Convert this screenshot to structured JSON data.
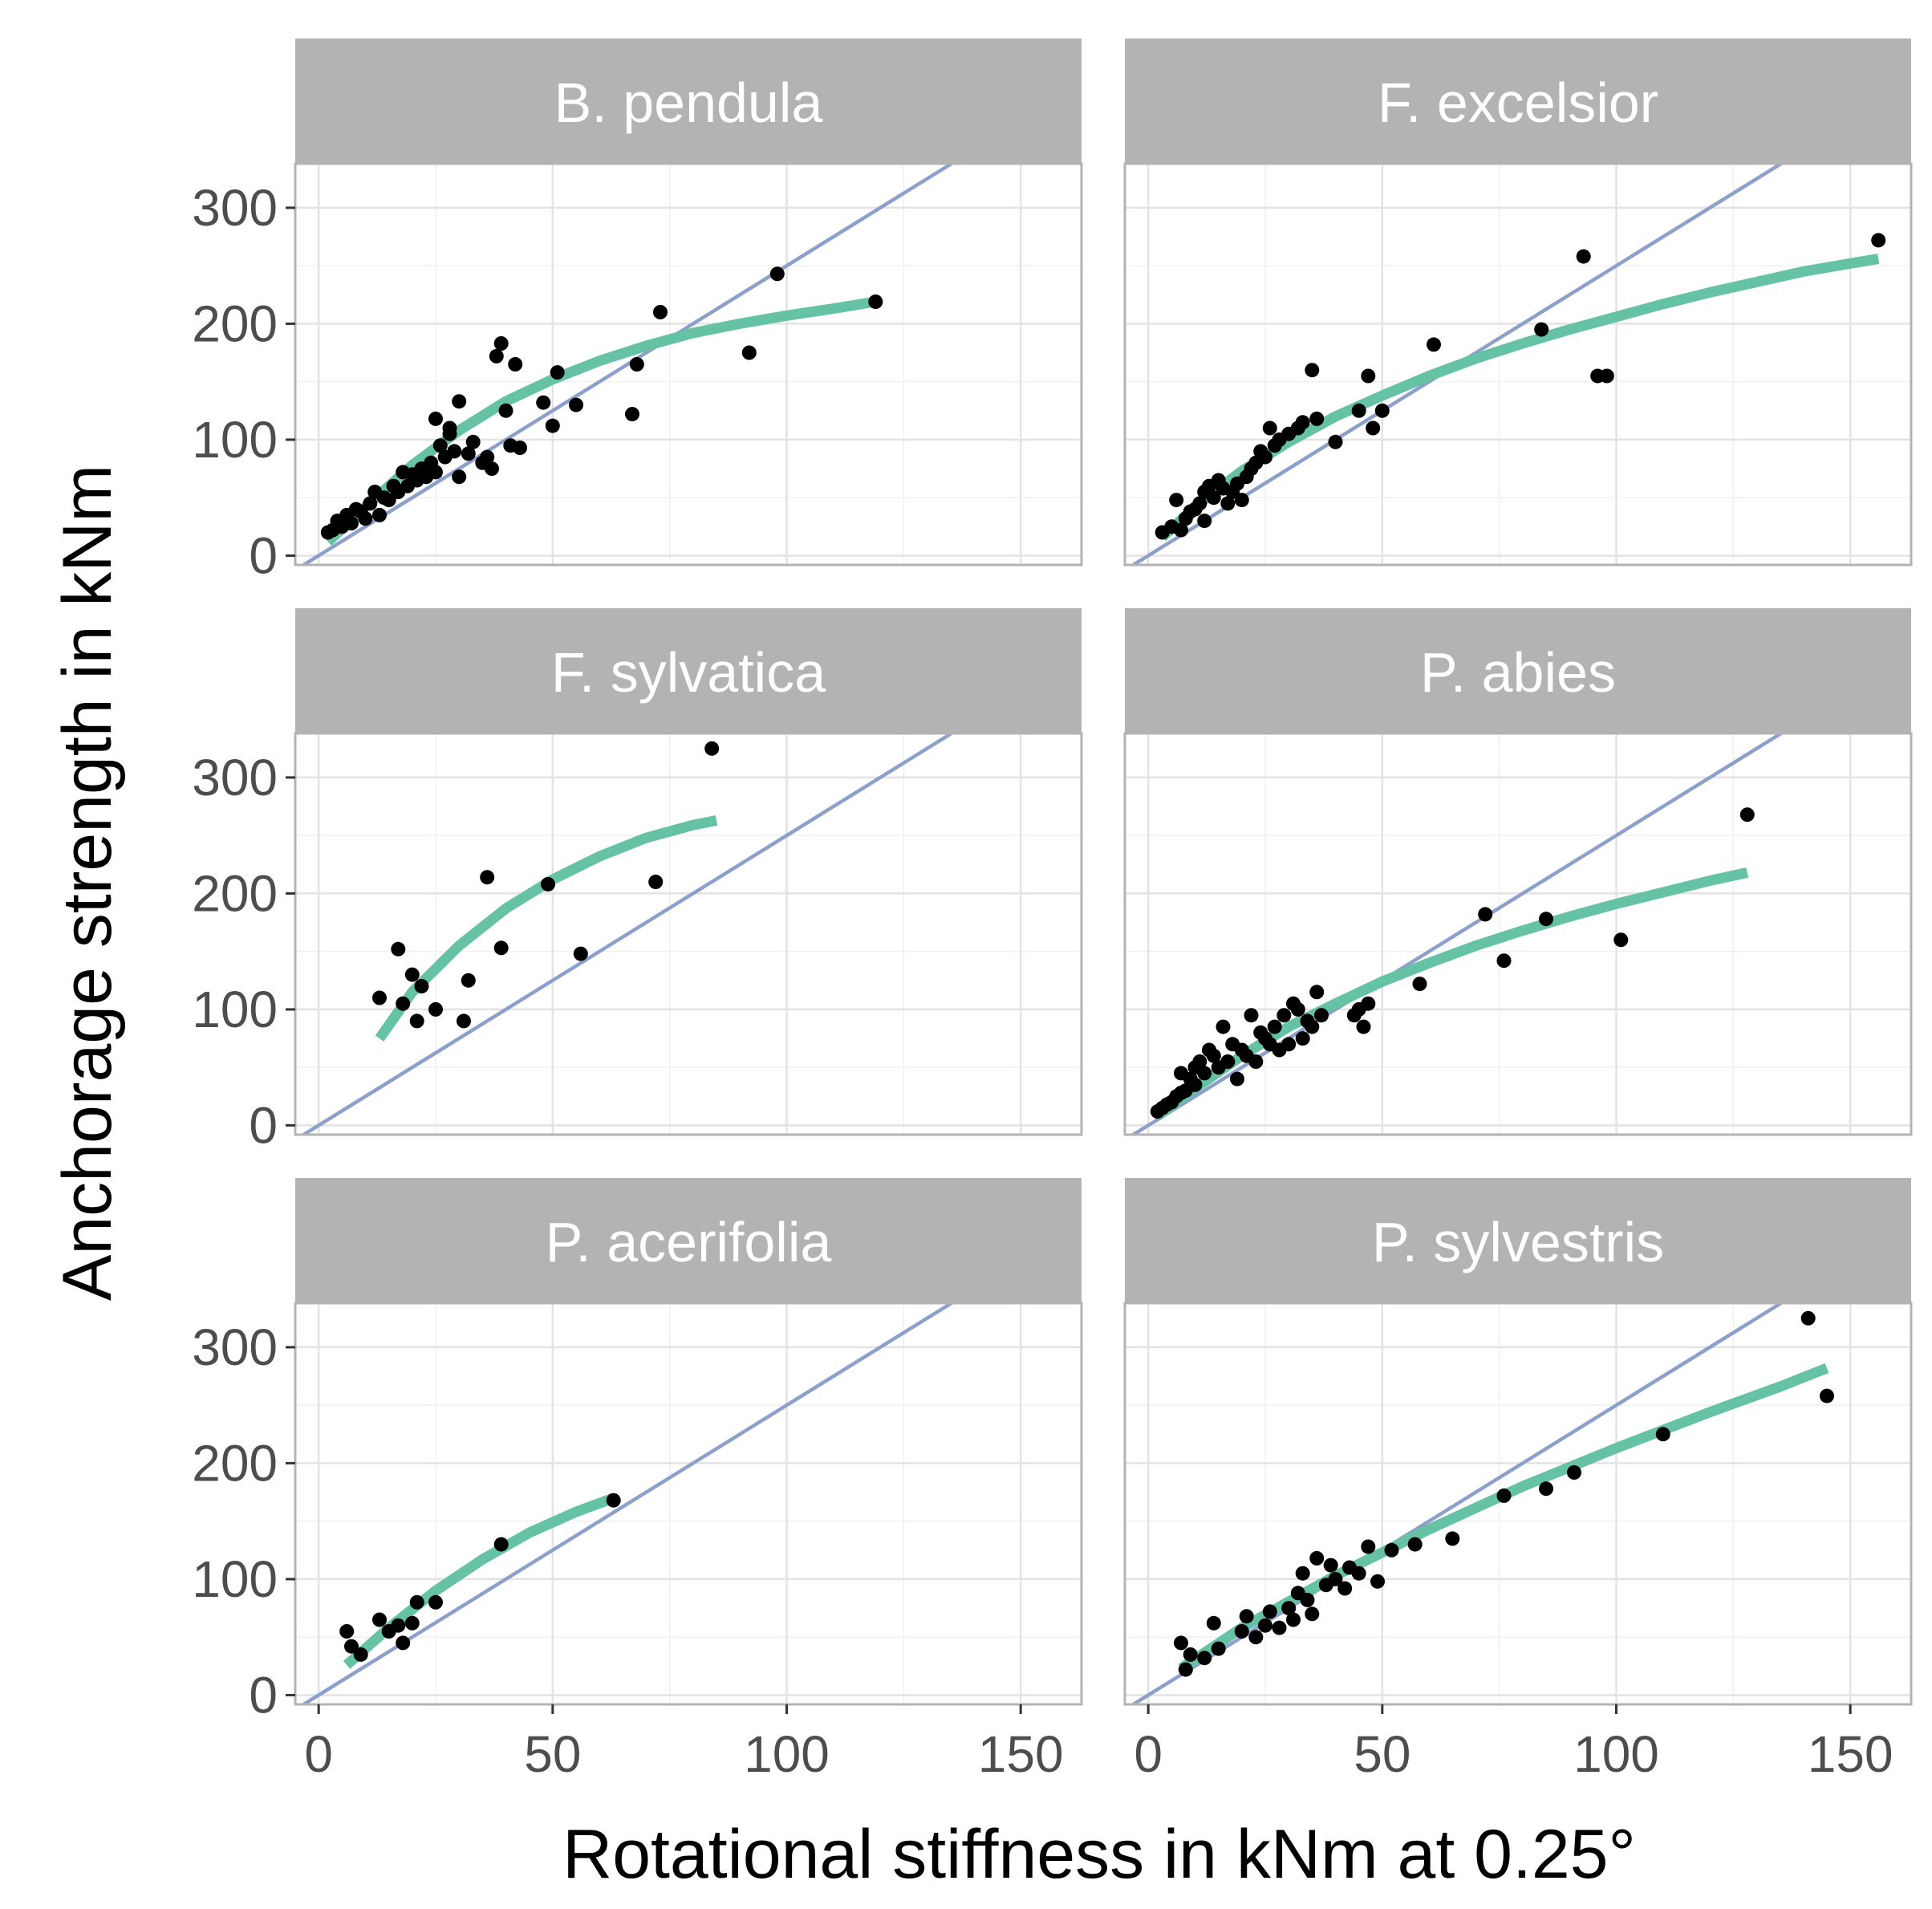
{
  "chart_data": {
    "type": "scatter",
    "xlabel": "Rotational stiffness in kNm at 0.25°",
    "ylabel": "Anchorage strength in kNm",
    "xlim": [
      -5,
      163
    ],
    "ylim": [
      -8,
      338
    ],
    "xticks": [
      0,
      50,
      100,
      150
    ],
    "xtick_labels": [
      "0",
      "50",
      "100",
      "150"
    ],
    "yticks": [
      0,
      100,
      200,
      300
    ],
    "ytick_labels": [
      "0",
      "100",
      "200",
      "300"
    ],
    "reference_line": {
      "slope": 2.5,
      "intercept": 0,
      "color": "#8da0cb"
    },
    "fit_color": "#66c2a5",
    "point_color": "#000000",
    "panels": [
      {
        "title": "B. pendula",
        "points": [
          [
            2,
            20
          ],
          [
            3,
            22
          ],
          [
            4,
            30
          ],
          [
            5,
            25
          ],
          [
            6,
            35
          ],
          [
            7,
            28
          ],
          [
            8,
            40
          ],
          [
            9,
            38
          ],
          [
            10,
            32
          ],
          [
            11,
            45
          ],
          [
            12,
            55
          ],
          [
            13,
            35
          ],
          [
            14,
            50
          ],
          [
            15,
            48
          ],
          [
            16,
            60
          ],
          [
            17,
            55
          ],
          [
            18,
            72
          ],
          [
            19,
            60
          ],
          [
            20,
            70
          ],
          [
            21,
            65
          ],
          [
            22,
            75
          ],
          [
            23,
            68
          ],
          [
            24,
            80
          ],
          [
            25,
            72
          ],
          [
            25,
            118
          ],
          [
            26,
            95
          ],
          [
            27,
            85
          ],
          [
            28,
            110
          ],
          [
            28,
            105
          ],
          [
            29,
            90
          ],
          [
            30,
            68
          ],
          [
            30,
            133
          ],
          [
            32,
            88
          ],
          [
            33,
            98
          ],
          [
            35,
            80
          ],
          [
            36,
            85
          ],
          [
            37,
            75
          ],
          [
            38,
            172
          ],
          [
            39,
            183
          ],
          [
            40,
            125
          ],
          [
            41,
            95
          ],
          [
            42,
            165
          ],
          [
            43,
            93
          ],
          [
            48,
            132
          ],
          [
            50,
            112
          ],
          [
            51,
            158
          ],
          [
            55,
            130
          ],
          [
            67,
            122
          ],
          [
            68,
            165
          ],
          [
            73,
            210
          ],
          [
            92,
            175
          ],
          [
            98,
            243
          ],
          [
            119,
            219
          ]
        ],
        "fit": [
          [
            2,
            12
          ],
          [
            10,
            42
          ],
          [
            20,
            78
          ],
          [
            30,
            108
          ],
          [
            40,
            133
          ],
          [
            50,
            152
          ],
          [
            60,
            168
          ],
          [
            70,
            181
          ],
          [
            80,
            192
          ],
          [
            90,
            200
          ],
          [
            100,
            207
          ],
          [
            110,
            213
          ],
          [
            119,
            219
          ]
        ]
      },
      {
        "title": "F. excelsior",
        "points": [
          [
            3,
            20
          ],
          [
            5,
            25
          ],
          [
            6,
            48
          ],
          [
            7,
            22
          ],
          [
            8,
            32
          ],
          [
            9,
            38
          ],
          [
            10,
            40
          ],
          [
            11,
            45
          ],
          [
            12,
            55
          ],
          [
            12,
            30
          ],
          [
            13,
            60
          ],
          [
            14,
            50
          ],
          [
            15,
            65
          ],
          [
            16,
            58
          ],
          [
            17,
            45
          ],
          [
            18,
            55
          ],
          [
            19,
            62
          ],
          [
            20,
            48
          ],
          [
            21,
            68
          ],
          [
            22,
            75
          ],
          [
            23,
            80
          ],
          [
            24,
            90
          ],
          [
            25,
            85
          ],
          [
            26,
            110
          ],
          [
            27,
            95
          ],
          [
            28,
            100
          ],
          [
            30,
            105
          ],
          [
            32,
            110
          ],
          [
            33,
            115
          ],
          [
            35,
            160
          ],
          [
            36,
            118
          ],
          [
            40,
            98
          ],
          [
            45,
            125
          ],
          [
            47,
            155
          ],
          [
            48,
            110
          ],
          [
            50,
            125
          ],
          [
            61,
            182
          ],
          [
            84,
            195
          ],
          [
            93,
            258
          ],
          [
            96,
            155
          ],
          [
            98,
            155
          ],
          [
            156,
            272
          ]
        ],
        "fit": [
          [
            3,
            16
          ],
          [
            10,
            42
          ],
          [
            20,
            73
          ],
          [
            30,
            98
          ],
          [
            40,
            120
          ],
          [
            50,
            138
          ],
          [
            60,
            155
          ],
          [
            70,
            170
          ],
          [
            80,
            183
          ],
          [
            90,
            195
          ],
          [
            100,
            206
          ],
          [
            110,
            217
          ],
          [
            120,
            227
          ],
          [
            130,
            236
          ],
          [
            140,
            245
          ],
          [
            150,
            252
          ],
          [
            156,
            256
          ]
        ]
      },
      {
        "title": "F. sylvatica",
        "points": [
          [
            13,
            110
          ],
          [
            17,
            152
          ],
          [
            18,
            105
          ],
          [
            20,
            130
          ],
          [
            21,
            90
          ],
          [
            22,
            120
          ],
          [
            25,
            100
          ],
          [
            31,
            90
          ],
          [
            32,
            125
          ],
          [
            36,
            214
          ],
          [
            39,
            153
          ],
          [
            49,
            208
          ],
          [
            56,
            148
          ],
          [
            72,
            210
          ],
          [
            84,
            325
          ]
        ],
        "fit": [
          [
            13,
            75
          ],
          [
            20,
            115
          ],
          [
            30,
            155
          ],
          [
            40,
            187
          ],
          [
            50,
            212
          ],
          [
            60,
            232
          ],
          [
            70,
            248
          ],
          [
            80,
            259
          ],
          [
            85,
            263
          ]
        ]
      },
      {
        "title": "P. abies",
        "points": [
          [
            2,
            12
          ],
          [
            3,
            15
          ],
          [
            4,
            18
          ],
          [
            5,
            20
          ],
          [
            6,
            25
          ],
          [
            7,
            28
          ],
          [
            7,
            45
          ],
          [
            8,
            30
          ],
          [
            9,
            40
          ],
          [
            10,
            50
          ],
          [
            10,
            35
          ],
          [
            11,
            55
          ],
          [
            12,
            45
          ],
          [
            13,
            65
          ],
          [
            14,
            60
          ],
          [
            15,
            50
          ],
          [
            16,
            85
          ],
          [
            17,
            55
          ],
          [
            18,
            70
          ],
          [
            19,
            40
          ],
          [
            20,
            65
          ],
          [
            21,
            60
          ],
          [
            22,
            95
          ],
          [
            23,
            55
          ],
          [
            24,
            80
          ],
          [
            25,
            75
          ],
          [
            26,
            70
          ],
          [
            27,
            85
          ],
          [
            28,
            65
          ],
          [
            29,
            95
          ],
          [
            30,
            70
          ],
          [
            31,
            105
          ],
          [
            32,
            100
          ],
          [
            33,
            75
          ],
          [
            34,
            90
          ],
          [
            35,
            85
          ],
          [
            36,
            115
          ],
          [
            37,
            95
          ],
          [
            44,
            95
          ],
          [
            45,
            100
          ],
          [
            46,
            85
          ],
          [
            47,
            105
          ],
          [
            58,
            122
          ],
          [
            72,
            182
          ],
          [
            76,
            142
          ],
          [
            85,
            178
          ],
          [
            101,
            160
          ],
          [
            128,
            268
          ]
        ],
        "fit": [
          [
            2,
            8
          ],
          [
            10,
            32
          ],
          [
            20,
            60
          ],
          [
            30,
            85
          ],
          [
            40,
            105
          ],
          [
            50,
            124
          ],
          [
            60,
            140
          ],
          [
            70,
            155
          ],
          [
            80,
            168
          ],
          [
            90,
            180
          ],
          [
            100,
            191
          ],
          [
            110,
            201
          ],
          [
            120,
            211
          ],
          [
            128,
            218
          ]
        ]
      },
      {
        "title": "P. acerifolia",
        "points": [
          [
            6,
            55
          ],
          [
            7,
            42
          ],
          [
            9,
            35
          ],
          [
            13,
            65
          ],
          [
            15,
            55
          ],
          [
            17,
            60
          ],
          [
            18,
            45
          ],
          [
            20,
            62
          ],
          [
            21,
            80
          ],
          [
            25,
            80
          ],
          [
            39,
            130
          ],
          [
            63,
            168
          ]
        ],
        "fit": [
          [
            6,
            26
          ],
          [
            15,
            58
          ],
          [
            25,
            90
          ],
          [
            35,
            117
          ],
          [
            45,
            140
          ],
          [
            55,
            158
          ],
          [
            63,
            170
          ]
        ]
      },
      {
        "title": "P. sylvestris",
        "points": [
          [
            7,
            45
          ],
          [
            8,
            22
          ],
          [
            9,
            35
          ],
          [
            12,
            32
          ],
          [
            14,
            62
          ],
          [
            15,
            40
          ],
          [
            20,
            55
          ],
          [
            21,
            68
          ],
          [
            23,
            50
          ],
          [
            25,
            60
          ],
          [
            26,
            72
          ],
          [
            28,
            58
          ],
          [
            30,
            75
          ],
          [
            31,
            65
          ],
          [
            32,
            88
          ],
          [
            33,
            105
          ],
          [
            34,
            82
          ],
          [
            35,
            70
          ],
          [
            36,
            118
          ],
          [
            38,
            95
          ],
          [
            39,
            112
          ],
          [
            40,
            100
          ],
          [
            42,
            92
          ],
          [
            43,
            110
          ],
          [
            45,
            105
          ],
          [
            47,
            128
          ],
          [
            49,
            98
          ],
          [
            52,
            125
          ],
          [
            57,
            130
          ],
          [
            65,
            135
          ],
          [
            76,
            172
          ],
          [
            85,
            178
          ],
          [
            91,
            192
          ],
          [
            110,
            225
          ],
          [
            141,
            325
          ],
          [
            145,
            258
          ]
        ],
        "fit": [
          [
            7,
            23
          ],
          [
            20,
            58
          ],
          [
            40,
            103
          ],
          [
            60,
            143
          ],
          [
            80,
            180
          ],
          [
            100,
            213
          ],
          [
            120,
            244
          ],
          [
            135,
            266
          ],
          [
            145,
            282
          ]
        ]
      }
    ]
  }
}
